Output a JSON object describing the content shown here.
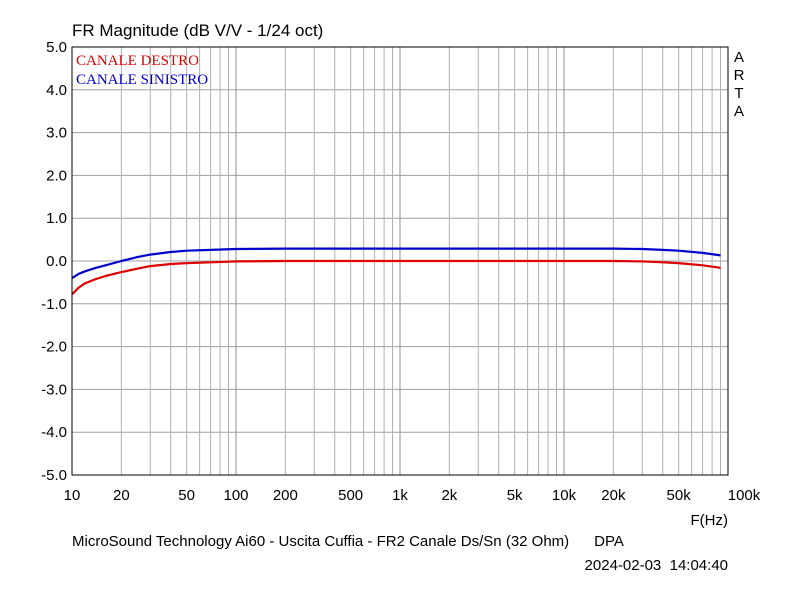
{
  "chart_data": {
    "type": "line",
    "title": "FR Magnitude (dB V/V - 1/24 oct)",
    "xlabel": "F(Hz)",
    "ylabel": "",
    "x_scale": "log",
    "xlim": [
      10,
      100000
    ],
    "ylim": [
      -5,
      5
    ],
    "grid": true,
    "legend_position": "top-left",
    "brand": "ARTA",
    "footer": "MicroSound Technology Ai60 - Uscita Cuffia - FR2 Canale Ds/Sn (32 Ohm)      DPA",
    "timestamp": "2024-02-03  14:04:40",
    "y_ticks": [
      {
        "value": 5,
        "label": "5.0"
      },
      {
        "value": 4,
        "label": "4.0"
      },
      {
        "value": 3,
        "label": "3.0"
      },
      {
        "value": 2,
        "label": "2.0"
      },
      {
        "value": 1,
        "label": "1.0"
      },
      {
        "value": 0,
        "label": "0.0"
      },
      {
        "value": -1,
        "label": "-1.0"
      },
      {
        "value": -2,
        "label": "-2.0"
      },
      {
        "value": -3,
        "label": "-3.0"
      },
      {
        "value": -4,
        "label": "-4.0"
      },
      {
        "value": -5,
        "label": "-5.0"
      }
    ],
    "x_ticks": [
      {
        "value": 10,
        "label": "10"
      },
      {
        "value": 20,
        "label": "20"
      },
      {
        "value": 50,
        "label": "50"
      },
      {
        "value": 100,
        "label": "100"
      },
      {
        "value": 200,
        "label": "200"
      },
      {
        "value": 500,
        "label": "500"
      },
      {
        "value": 1000,
        "label": "1k"
      },
      {
        "value": 2000,
        "label": "2k"
      },
      {
        "value": 5000,
        "label": "5k"
      },
      {
        "value": 10000,
        "label": "10k"
      },
      {
        "value": 20000,
        "label": "20k"
      },
      {
        "value": 50000,
        "label": "50k"
      },
      {
        "value": 100000,
        "label": "100k"
      }
    ],
    "series": [
      {
        "name": "CANALE DESTRO",
        "color": "#dd0000",
        "points": [
          [
            10,
            -0.78
          ],
          [
            11,
            -0.62
          ],
          [
            12,
            -0.52
          ],
          [
            14,
            -0.42
          ],
          [
            16,
            -0.35
          ],
          [
            20,
            -0.26
          ],
          [
            25,
            -0.18
          ],
          [
            30,
            -0.12
          ],
          [
            40,
            -0.07
          ],
          [
            50,
            -0.05
          ],
          [
            70,
            -0.03
          ],
          [
            100,
            -0.01
          ],
          [
            200,
            0.0
          ],
          [
            500,
            0.0
          ],
          [
            1000,
            0.0
          ],
          [
            5000,
            0.0
          ],
          [
            10000,
            0.0
          ],
          [
            20000,
            0.0
          ],
          [
            30000,
            -0.01
          ],
          [
            40000,
            -0.03
          ],
          [
            50000,
            -0.05
          ],
          [
            70000,
            -0.1
          ],
          [
            90000,
            -0.16
          ]
        ]
      },
      {
        "name": "CANALE SINISTRO",
        "color": "#0000cc",
        "points": [
          [
            10,
            -0.4
          ],
          [
            11,
            -0.3
          ],
          [
            12,
            -0.24
          ],
          [
            14,
            -0.16
          ],
          [
            16,
            -0.1
          ],
          [
            20,
            0.0
          ],
          [
            25,
            0.09
          ],
          [
            30,
            0.15
          ],
          [
            40,
            0.21
          ],
          [
            50,
            0.24
          ],
          [
            70,
            0.26
          ],
          [
            100,
            0.28
          ],
          [
            200,
            0.29
          ],
          [
            500,
            0.29
          ],
          [
            1000,
            0.29
          ],
          [
            5000,
            0.29
          ],
          [
            10000,
            0.29
          ],
          [
            20000,
            0.29
          ],
          [
            30000,
            0.28
          ],
          [
            40000,
            0.26
          ],
          [
            50000,
            0.24
          ],
          [
            70000,
            0.19
          ],
          [
            90000,
            0.13
          ]
        ]
      }
    ]
  }
}
